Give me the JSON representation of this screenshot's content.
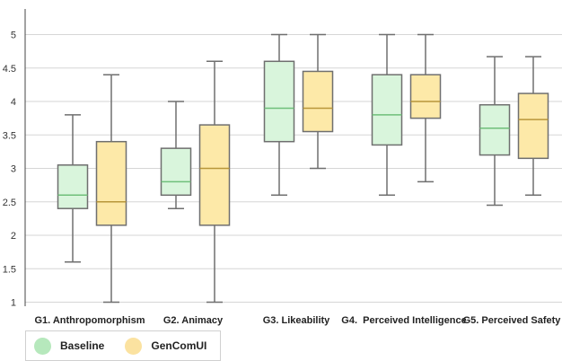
{
  "chart_data": {
    "type": "box",
    "ylim": [
      1,
      5.2
    ],
    "yticks": [
      "1",
      "1.5",
      "2",
      "2.5",
      "3",
      "3.5",
      "4",
      "4.5",
      "5"
    ],
    "categories": [
      "G1. Anthropomorphism",
      "G2. Animacy",
      "G3. Likeability",
      "G4.  Perceived Intelligence",
      "G5. Perceived Safety"
    ],
    "series": [
      {
        "name": "Baseline",
        "color": "#d9f5dc",
        "stroke": "#6f6f6f",
        "median_color": "#6fbf7a",
        "boxes": [
          {
            "min": 1.6,
            "q1": 2.4,
            "median": 2.6,
            "q3": 3.05,
            "max": 3.8
          },
          {
            "min": 2.4,
            "q1": 2.6,
            "median": 2.8,
            "q3": 3.3,
            "max": 4.0
          },
          {
            "min": 2.6,
            "q1": 3.4,
            "median": 3.9,
            "q3": 4.6,
            "max": 5.0
          },
          {
            "min": 2.6,
            "q1": 3.35,
            "median": 3.8,
            "q3": 4.4,
            "max": 5.0
          },
          {
            "min": 2.45,
            "q1": 3.2,
            "median": 3.6,
            "q3": 3.95,
            "max": 4.67
          }
        ]
      },
      {
        "name": "GenComUI",
        "color": "#fde9a8",
        "stroke": "#6f6f6f",
        "median_color": "#b8963a",
        "boxes": [
          {
            "min": 1.0,
            "q1": 2.15,
            "median": 2.5,
            "q3": 3.4,
            "max": 4.4
          },
          {
            "min": 1.0,
            "q1": 2.15,
            "median": 3.0,
            "q3": 3.65,
            "max": 4.6
          },
          {
            "min": 3.0,
            "q1": 3.55,
            "median": 3.9,
            "q3": 4.45,
            "max": 5.0
          },
          {
            "min": 2.8,
            "q1": 3.75,
            "median": 4.0,
            "q3": 4.4,
            "max": 5.0
          },
          {
            "min": 2.6,
            "q1": 3.15,
            "median": 3.73,
            "q3": 4.12,
            "max": 4.67
          }
        ]
      }
    ],
    "legend": {
      "placement": "bottom-left",
      "items": [
        {
          "label": "Baseline",
          "color": "#b6e8bc"
        },
        {
          "label": "GenComUI",
          "color": "#fbe2a0"
        }
      ]
    },
    "grid": true
  }
}
